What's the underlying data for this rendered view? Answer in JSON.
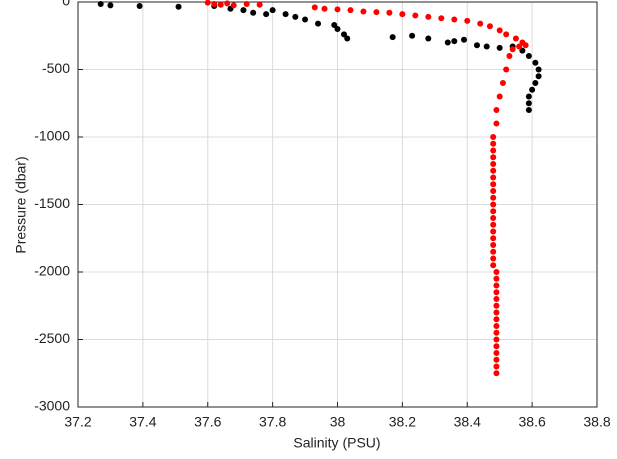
{
  "chart_data": {
    "type": "scatter",
    "xlabel": "Salinity (PSU)",
    "ylabel": "Pressure (dbar)",
    "xlim": [
      37.2,
      38.8
    ],
    "xticks": [
      37.2,
      37.4,
      37.6,
      37.8,
      38,
      38.2,
      38.4,
      38.6,
      38.8
    ],
    "ylim": [
      -3000,
      0
    ],
    "yticks": [
      -3000,
      -2500,
      -2000,
      -1500,
      -1000,
      -500,
      0
    ],
    "grid": true,
    "series": [
      {
        "color": "#000000",
        "x": [
          37.27,
          37.3,
          37.39,
          37.51,
          37.62,
          37.67,
          37.71,
          37.74,
          37.78,
          37.8,
          37.84,
          37.87,
          37.9,
          37.94,
          37.99,
          38.0,
          38.02,
          38.03,
          38.17,
          38.23,
          38.28,
          38.34,
          38.36,
          38.39,
          38.43,
          38.46,
          38.5,
          38.54,
          38.57,
          38.59,
          38.61,
          38.62,
          38.62,
          38.61,
          38.6,
          38.59,
          38.59,
          38.59
        ],
        "values": [
          -15,
          -25,
          -30,
          -35,
          -30,
          -50,
          -60,
          -80,
          -90,
          -60,
          -90,
          -110,
          -130,
          -160,
          -170,
          -200,
          -240,
          -270,
          -260,
          -250,
          -270,
          -300,
          -290,
          -280,
          -320,
          -330,
          -340,
          -330,
          -360,
          -400,
          -450,
          -500,
          -550,
          -600,
          -650,
          -700,
          -750,
          -800
        ]
      },
      {
        "color": "#ff0000",
        "x": [
          37.6,
          37.62,
          37.64,
          37.66,
          37.68,
          37.72,
          37.76,
          37.93,
          37.96,
          38.0,
          38.04,
          38.08,
          38.12,
          38.16,
          38.2,
          38.24,
          38.28,
          38.32,
          38.36,
          38.4,
          38.44,
          38.47,
          38.5,
          38.52,
          38.55,
          38.57,
          38.58,
          38.56,
          38.54,
          38.53,
          38.52,
          38.51,
          38.5,
          38.49,
          38.49,
          38.48,
          38.48,
          38.48,
          38.48,
          38.48,
          38.48,
          38.48,
          38.48,
          38.48,
          38.48,
          38.48,
          38.48,
          38.48,
          38.48,
          38.48,
          38.48,
          38.48,
          38.48,
          38.48,
          38.48,
          38.49,
          38.49,
          38.49,
          38.49,
          38.49,
          38.49,
          38.49,
          38.49,
          38.49,
          38.49,
          38.49,
          38.49,
          38.49,
          38.49,
          38.49,
          38.49
        ],
        "values": [
          -5,
          -15,
          -20,
          -10,
          -25,
          -15,
          -20,
          -40,
          -50,
          -55,
          -60,
          -70,
          -75,
          -80,
          -90,
          -100,
          -110,
          -120,
          -130,
          -140,
          -160,
          -180,
          -210,
          -240,
          -270,
          -300,
          -320,
          -330,
          -350,
          -400,
          -500,
          -600,
          -700,
          -800,
          -900,
          -1000,
          -1050,
          -1100,
          -1150,
          -1200,
          -1250,
          -1300,
          -1350,
          -1400,
          -1450,
          -1500,
          -1550,
          -1600,
          -1650,
          -1700,
          -1750,
          -1800,
          -1850,
          -1900,
          -1950,
          -2000,
          -2050,
          -2100,
          -2150,
          -2200,
          -2250,
          -2300,
          -2350,
          -2400,
          -2450,
          -2500,
          -2550,
          -2600,
          -2650,
          -2700,
          -2750
        ]
      }
    ]
  }
}
